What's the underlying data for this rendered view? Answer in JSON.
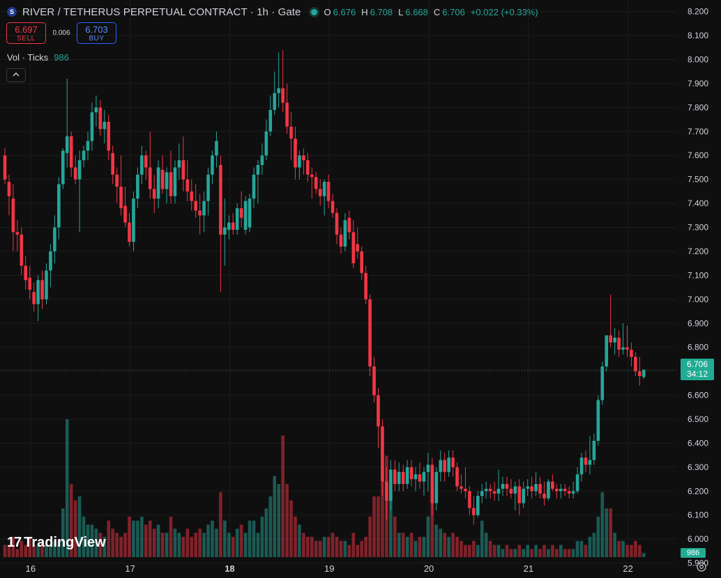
{
  "header": {
    "symbol_icon": "S",
    "title": "RIVER / TETHERUS PERPETUAL CONTRACT · 1h · Gate",
    "o_label": "O",
    "o_value": "6.676",
    "h_label": "H",
    "h_value": "6.708",
    "l_label": "L",
    "l_value": "6.668",
    "c_label": "C",
    "c_value": "6.706",
    "change": "+0.022 (+0.33%)"
  },
  "trade": {
    "sell_price": "6.697",
    "sell_label": "SELL",
    "spread": "0.006",
    "buy_price": "6.703",
    "buy_label": "BUY"
  },
  "volume_legend": {
    "label": "Vol · Ticks",
    "value": "986"
  },
  "price_tag": {
    "price": "6.706",
    "countdown": "34:12"
  },
  "volume_tag": "986",
  "logo": {
    "mark": "17",
    "name": "TradingView"
  },
  "colors": {
    "up": "#26a69a",
    "down": "#f23645",
    "bg": "#0f0f0f",
    "grid": "#1c1c1c"
  },
  "icons": {
    "collapse": "chevron-up-icon",
    "settings": "gear-icon"
  },
  "chart_data": {
    "type": "candlestick",
    "y_range": [
      5.925,
      8.225
    ],
    "y_ticks": [
      "8.200",
      "8.100",
      "8.000",
      "7.900",
      "7.800",
      "7.700",
      "7.600",
      "7.500",
      "7.400",
      "7.300",
      "7.200",
      "7.100",
      "7.000",
      "6.900",
      "6.800",
      "6.700",
      "6.600",
      "6.500",
      "6.400",
      "6.300",
      "6.200",
      "6.100",
      "6.000",
      "5.900"
    ],
    "x_tick_labels": [
      {
        "label": "16",
        "bar": 3,
        "bold": false
      },
      {
        "label": "17",
        "bar": 27,
        "bold": false
      },
      {
        "label": "18",
        "bar": 51,
        "bold": true
      },
      {
        "label": "19",
        "bar": 75,
        "bold": false
      },
      {
        "label": "20",
        "bar": 99,
        "bold": false
      },
      {
        "label": "21",
        "bar": 123,
        "bold": false
      },
      {
        "label": "22",
        "bar": 147,
        "bold": false
      }
    ],
    "last_price": 6.706,
    "candles": [
      {
        "o": 7.6,
        "h": 7.63,
        "l": 7.48,
        "c": 7.5,
        "v": 3
      },
      {
        "o": 7.49,
        "h": 7.52,
        "l": 7.35,
        "c": 7.43,
        "v": 3
      },
      {
        "o": 7.42,
        "h": 7.48,
        "l": 7.2,
        "c": 7.28,
        "v": 5
      },
      {
        "o": 7.28,
        "h": 7.33,
        "l": 7.2,
        "c": 7.27,
        "v": 2
      },
      {
        "o": 7.27,
        "h": 7.3,
        "l": 7.1,
        "c": 7.14,
        "v": 4
      },
      {
        "o": 7.14,
        "h": 7.18,
        "l": 7.04,
        "c": 7.08,
        "v": 3
      },
      {
        "o": 7.09,
        "h": 7.14,
        "l": 7.0,
        "c": 7.04,
        "v": 5
      },
      {
        "o": 7.03,
        "h": 7.07,
        "l": 6.95,
        "c": 6.98,
        "v": 3
      },
      {
        "o": 6.98,
        "h": 7.1,
        "l": 6.91,
        "c": 7.08,
        "v": 3
      },
      {
        "o": 7.08,
        "h": 7.12,
        "l": 6.96,
        "c": 7.0,
        "v": 4
      },
      {
        "o": 7.0,
        "h": 7.15,
        "l": 6.98,
        "c": 7.12,
        "v": 3
      },
      {
        "o": 7.12,
        "h": 7.23,
        "l": 7.05,
        "c": 7.2,
        "v": 3
      },
      {
        "o": 7.2,
        "h": 7.35,
        "l": 7.15,
        "c": 7.3,
        "v": 4
      },
      {
        "o": 7.3,
        "h": 7.51,
        "l": 7.25,
        "c": 7.48,
        "v": 4
      },
      {
        "o": 7.48,
        "h": 7.63,
        "l": 7.46,
        "c": 7.62,
        "v": 12
      },
      {
        "o": 7.61,
        "h": 7.92,
        "l": 7.55,
        "c": 7.68,
        "v": 34
      },
      {
        "o": 7.68,
        "h": 7.7,
        "l": 7.51,
        "c": 7.55,
        "v": 18
      },
      {
        "o": 7.55,
        "h": 7.6,
        "l": 7.48,
        "c": 7.5,
        "v": 14
      },
      {
        "o": 7.5,
        "h": 7.62,
        "l": 7.28,
        "c": 7.58,
        "v": 15
      },
      {
        "o": 7.58,
        "h": 7.64,
        "l": 7.55,
        "c": 7.62,
        "v": 10
      },
      {
        "o": 7.62,
        "h": 7.7,
        "l": 7.58,
        "c": 7.66,
        "v": 8
      },
      {
        "o": 7.66,
        "h": 7.82,
        "l": 7.62,
        "c": 7.78,
        "v": 8
      },
      {
        "o": 7.78,
        "h": 7.85,
        "l": 7.72,
        "c": 7.8,
        "v": 7
      },
      {
        "o": 7.8,
        "h": 7.83,
        "l": 7.68,
        "c": 7.71,
        "v": 6
      },
      {
        "o": 7.71,
        "h": 7.79,
        "l": 7.65,
        "c": 7.74,
        "v": 5
      },
      {
        "o": 7.74,
        "h": 7.77,
        "l": 7.58,
        "c": 7.62,
        "v": 9
      },
      {
        "o": 7.61,
        "h": 7.64,
        "l": 7.48,
        "c": 7.52,
        "v": 7
      },
      {
        "o": 7.52,
        "h": 7.55,
        "l": 7.4,
        "c": 7.47,
        "v": 6
      },
      {
        "o": 7.47,
        "h": 7.6,
        "l": 7.35,
        "c": 7.38,
        "v": 5
      },
      {
        "o": 7.39,
        "h": 7.47,
        "l": 7.3,
        "c": 7.32,
        "v": 6
      },
      {
        "o": 7.32,
        "h": 7.36,
        "l": 7.22,
        "c": 7.24,
        "v": 10
      },
      {
        "o": 7.24,
        "h": 7.45,
        "l": 7.2,
        "c": 7.42,
        "v": 9
      },
      {
        "o": 7.42,
        "h": 7.55,
        "l": 7.38,
        "c": 7.52,
        "v": 9
      },
      {
        "o": 7.52,
        "h": 7.64,
        "l": 7.48,
        "c": 7.6,
        "v": 10
      },
      {
        "o": 7.6,
        "h": 7.62,
        "l": 7.5,
        "c": 7.55,
        "v": 8
      },
      {
        "o": 7.55,
        "h": 7.7,
        "l": 7.42,
        "c": 7.46,
        "v": 9
      },
      {
        "o": 7.46,
        "h": 7.52,
        "l": 7.36,
        "c": 7.42,
        "v": 7
      },
      {
        "o": 7.42,
        "h": 7.58,
        "l": 7.38,
        "c": 7.55,
        "v": 8
      },
      {
        "o": 7.54,
        "h": 7.6,
        "l": 7.44,
        "c": 7.46,
        "v": 6
      },
      {
        "o": 7.46,
        "h": 7.55,
        "l": 7.4,
        "c": 7.53,
        "v": 6
      },
      {
        "o": 7.53,
        "h": 7.62,
        "l": 7.4,
        "c": 7.43,
        "v": 10
      },
      {
        "o": 7.43,
        "h": 7.58,
        "l": 7.4,
        "c": 7.55,
        "v": 7
      },
      {
        "o": 7.55,
        "h": 7.65,
        "l": 7.5,
        "c": 7.58,
        "v": 6
      },
      {
        "o": 7.58,
        "h": 7.68,
        "l": 7.45,
        "c": 7.5,
        "v": 5
      },
      {
        "o": 7.5,
        "h": 7.58,
        "l": 7.41,
        "c": 7.45,
        "v": 7
      },
      {
        "o": 7.45,
        "h": 7.5,
        "l": 7.37,
        "c": 7.41,
        "v": 5
      },
      {
        "o": 7.41,
        "h": 7.48,
        "l": 7.34,
        "c": 7.37,
        "v": 6
      },
      {
        "o": 7.37,
        "h": 7.44,
        "l": 7.27,
        "c": 7.35,
        "v": 7
      },
      {
        "o": 7.35,
        "h": 7.45,
        "l": 7.28,
        "c": 7.41,
        "v": 6
      },
      {
        "o": 7.41,
        "h": 7.55,
        "l": 7.35,
        "c": 7.52,
        "v": 8
      },
      {
        "o": 7.52,
        "h": 7.62,
        "l": 7.48,
        "c": 7.6,
        "v": 9
      },
      {
        "o": 7.6,
        "h": 7.7,
        "l": 7.55,
        "c": 7.66,
        "v": 7
      },
      {
        "o": 7.56,
        "h": 7.6,
        "l": 7.03,
        "c": 7.27,
        "v": 16
      },
      {
        "o": 7.27,
        "h": 7.42,
        "l": 7.14,
        "c": 7.3,
        "v": 9
      },
      {
        "o": 7.29,
        "h": 7.35,
        "l": 7.25,
        "c": 7.32,
        "v": 6
      },
      {
        "o": 7.32,
        "h": 7.36,
        "l": 7.27,
        "c": 7.29,
        "v": 5
      },
      {
        "o": 7.29,
        "h": 7.4,
        "l": 7.27,
        "c": 7.38,
        "v": 7
      },
      {
        "o": 7.38,
        "h": 7.45,
        "l": 7.3,
        "c": 7.34,
        "v": 8
      },
      {
        "o": 7.29,
        "h": 7.43,
        "l": 7.27,
        "c": 7.41,
        "v": 6
      },
      {
        "o": 7.3,
        "h": 7.44,
        "l": 7.28,
        "c": 7.42,
        "v": 9
      },
      {
        "o": 7.42,
        "h": 7.55,
        "l": 7.38,
        "c": 7.52,
        "v": 9
      },
      {
        "o": 7.52,
        "h": 7.58,
        "l": 7.4,
        "c": 7.56,
        "v": 6
      },
      {
        "o": 7.56,
        "h": 7.65,
        "l": 7.52,
        "c": 7.6,
        "v": 10
      },
      {
        "o": 7.6,
        "h": 7.75,
        "l": 7.58,
        "c": 7.7,
        "v": 12
      },
      {
        "o": 7.7,
        "h": 7.85,
        "l": 7.68,
        "c": 7.79,
        "v": 15
      },
      {
        "o": 7.79,
        "h": 7.95,
        "l": 7.77,
        "c": 7.86,
        "v": 20
      },
      {
        "o": 7.86,
        "h": 8.03,
        "l": 7.8,
        "c": 7.88,
        "v": 18
      },
      {
        "o": 7.88,
        "h": 8.04,
        "l": 7.78,
        "c": 7.82,
        "v": 30
      },
      {
        "o": 7.82,
        "h": 7.9,
        "l": 7.69,
        "c": 7.72,
        "v": 18
      },
      {
        "o": 7.72,
        "h": 7.78,
        "l": 7.58,
        "c": 7.67,
        "v": 14
      },
      {
        "o": 7.67,
        "h": 7.72,
        "l": 7.5,
        "c": 7.55,
        "v": 10
      },
      {
        "o": 7.55,
        "h": 7.62,
        "l": 7.5,
        "c": 7.6,
        "v": 8
      },
      {
        "o": 7.6,
        "h": 7.63,
        "l": 7.52,
        "c": 7.58,
        "v": 6
      },
      {
        "o": 7.58,
        "h": 7.61,
        "l": 7.49,
        "c": 7.52,
        "v": 5
      },
      {
        "o": 7.52,
        "h": 7.55,
        "l": 7.42,
        "c": 7.51,
        "v": 5
      },
      {
        "o": 7.51,
        "h": 7.53,
        "l": 7.44,
        "c": 7.46,
        "v": 4
      },
      {
        "o": 7.46,
        "h": 7.5,
        "l": 7.39,
        "c": 7.43,
        "v": 4
      },
      {
        "o": 7.43,
        "h": 7.5,
        "l": 7.35,
        "c": 7.49,
        "v": 5
      },
      {
        "o": 7.49,
        "h": 7.52,
        "l": 7.38,
        "c": 7.41,
        "v": 5
      },
      {
        "o": 7.41,
        "h": 7.44,
        "l": 7.34,
        "c": 7.36,
        "v": 6
      },
      {
        "o": 7.36,
        "h": 7.38,
        "l": 7.23,
        "c": 7.27,
        "v": 5
      },
      {
        "o": 7.27,
        "h": 7.3,
        "l": 7.19,
        "c": 7.22,
        "v": 4
      },
      {
        "o": 7.22,
        "h": 7.36,
        "l": 7.2,
        "c": 7.33,
        "v": 4
      },
      {
        "o": 7.34,
        "h": 7.37,
        "l": 7.25,
        "c": 7.28,
        "v": 3
      },
      {
        "o": 7.28,
        "h": 7.33,
        "l": 7.13,
        "c": 7.15,
        "v": 6
      },
      {
        "o": 7.23,
        "h": 7.3,
        "l": 7.17,
        "c": 7.2,
        "v": 3
      },
      {
        "o": 7.2,
        "h": 7.22,
        "l": 7.08,
        "c": 7.11,
        "v": 4
      },
      {
        "o": 7.11,
        "h": 7.14,
        "l": 6.98,
        "c": 7.0,
        "v": 5
      },
      {
        "o": 7.0,
        "h": 7.02,
        "l": 6.68,
        "c": 6.72,
        "v": 10
      },
      {
        "o": 6.72,
        "h": 6.76,
        "l": 6.57,
        "c": 6.6,
        "v": 15
      },
      {
        "o": 6.6,
        "h": 6.63,
        "l": 6.38,
        "c": 6.47,
        "v": 15
      },
      {
        "o": 6.47,
        "h": 6.5,
        "l": 6.18,
        "c": 6.24,
        "v": 20
      },
      {
        "o": 6.24,
        "h": 6.3,
        "l": 6.08,
        "c": 6.16,
        "v": 25
      },
      {
        "o": 6.16,
        "h": 6.33,
        "l": 6.12,
        "c": 6.29,
        "v": 15
      },
      {
        "o": 6.29,
        "h": 6.33,
        "l": 6.2,
        "c": 6.23,
        "v": 10
      },
      {
        "o": 6.23,
        "h": 6.32,
        "l": 6.2,
        "c": 6.28,
        "v": 6
      },
      {
        "o": 6.28,
        "h": 6.31,
        "l": 6.2,
        "c": 6.23,
        "v": 6
      },
      {
        "o": 6.23,
        "h": 6.33,
        "l": 6.21,
        "c": 6.3,
        "v": 5
      },
      {
        "o": 6.3,
        "h": 6.33,
        "l": 6.22,
        "c": 6.25,
        "v": 6
      },
      {
        "o": 6.25,
        "h": 6.3,
        "l": 6.2,
        "c": 6.27,
        "v": 4
      },
      {
        "o": 6.27,
        "h": 6.32,
        "l": 6.21,
        "c": 6.24,
        "v": 5
      },
      {
        "o": 6.24,
        "h": 6.3,
        "l": 6.18,
        "c": 6.28,
        "v": 5
      },
      {
        "o": 6.28,
        "h": 6.36,
        "l": 6.2,
        "c": 6.31,
        "v": 10
      },
      {
        "o": 6.31,
        "h": 6.34,
        "l": 6.1,
        "c": 6.15,
        "v": 14
      },
      {
        "o": 6.15,
        "h": 6.3,
        "l": 6.12,
        "c": 6.28,
        "v": 8
      },
      {
        "o": 6.28,
        "h": 6.37,
        "l": 6.24,
        "c": 6.33,
        "v": 7
      },
      {
        "o": 6.33,
        "h": 6.36,
        "l": 6.24,
        "c": 6.28,
        "v": 6
      },
      {
        "o": 6.28,
        "h": 6.37,
        "l": 6.26,
        "c": 6.34,
        "v": 5
      },
      {
        "o": 6.34,
        "h": 6.37,
        "l": 6.26,
        "c": 6.3,
        "v": 6
      },
      {
        "o": 6.3,
        "h": 6.32,
        "l": 6.2,
        "c": 6.22,
        "v": 5
      },
      {
        "o": 6.22,
        "h": 6.27,
        "l": 6.19,
        "c": 6.21,
        "v": 4
      },
      {
        "o": 6.21,
        "h": 6.3,
        "l": 6.17,
        "c": 6.2,
        "v": 3
      },
      {
        "o": 6.2,
        "h": 6.22,
        "l": 6.1,
        "c": 6.13,
        "v": 3
      },
      {
        "o": 6.13,
        "h": 6.18,
        "l": 6.06,
        "c": 6.1,
        "v": 4
      },
      {
        "o": 6.1,
        "h": 6.2,
        "l": 6.09,
        "c": 6.18,
        "v": 3
      },
      {
        "o": 6.18,
        "h": 6.23,
        "l": 6.15,
        "c": 6.2,
        "v": 9
      },
      {
        "o": 6.2,
        "h": 6.24,
        "l": 6.17,
        "c": 6.21,
        "v": 6
      },
      {
        "o": 6.21,
        "h": 6.23,
        "l": 6.17,
        "c": 6.2,
        "v": 4
      },
      {
        "o": 6.2,
        "h": 6.24,
        "l": 6.16,
        "c": 6.19,
        "v": 3
      },
      {
        "o": 6.19,
        "h": 6.29,
        "l": 6.16,
        "c": 6.21,
        "v": 3
      },
      {
        "o": 6.21,
        "h": 6.26,
        "l": 6.18,
        "c": 6.23,
        "v": 2
      },
      {
        "o": 6.23,
        "h": 6.26,
        "l": 6.18,
        "c": 6.21,
        "v": 3
      },
      {
        "o": 6.21,
        "h": 6.25,
        "l": 6.17,
        "c": 6.19,
        "v": 2
      },
      {
        "o": 6.19,
        "h": 6.24,
        "l": 6.12,
        "c": 6.22,
        "v": 2
      },
      {
        "o": 6.22,
        "h": 6.25,
        "l": 6.1,
        "c": 6.15,
        "v": 3
      },
      {
        "o": 6.15,
        "h": 6.24,
        "l": 6.13,
        "c": 6.21,
        "v": 2
      },
      {
        "o": 6.21,
        "h": 6.25,
        "l": 6.18,
        "c": 6.22,
        "v": 3
      },
      {
        "o": 6.22,
        "h": 6.26,
        "l": 6.17,
        "c": 6.2,
        "v": 2
      },
      {
        "o": 6.2,
        "h": 6.28,
        "l": 6.18,
        "c": 6.23,
        "v": 3
      },
      {
        "o": 6.23,
        "h": 6.26,
        "l": 6.17,
        "c": 6.19,
        "v": 2
      },
      {
        "o": 6.19,
        "h": 6.24,
        "l": 6.14,
        "c": 6.17,
        "v": 3
      },
      {
        "o": 6.17,
        "h": 6.25,
        "l": 6.16,
        "c": 6.24,
        "v": 2
      },
      {
        "o": 6.24,
        "h": 6.27,
        "l": 6.2,
        "c": 6.21,
        "v": 3
      },
      {
        "o": 6.21,
        "h": 6.23,
        "l": 6.17,
        "c": 6.2,
        "v": 2
      },
      {
        "o": 6.2,
        "h": 6.23,
        "l": 6.17,
        "c": 6.21,
        "v": 3
      },
      {
        "o": 6.21,
        "h": 6.23,
        "l": 6.18,
        "c": 6.2,
        "v": 2
      },
      {
        "o": 6.2,
        "h": 6.22,
        "l": 6.17,
        "c": 6.19,
        "v": 2
      },
      {
        "o": 6.19,
        "h": 6.24,
        "l": 6.17,
        "c": 6.2,
        "v": 2
      },
      {
        "o": 6.2,
        "h": 6.3,
        "l": 6.19,
        "c": 6.27,
        "v": 4
      },
      {
        "o": 6.27,
        "h": 6.36,
        "l": 6.24,
        "c": 6.34,
        "v": 4
      },
      {
        "o": 6.34,
        "h": 6.37,
        "l": 6.28,
        "c": 6.31,
        "v": 3
      },
      {
        "o": 6.31,
        "h": 6.43,
        "l": 6.27,
        "c": 6.33,
        "v": 5
      },
      {
        "o": 6.33,
        "h": 6.44,
        "l": 6.31,
        "c": 6.41,
        "v": 6
      },
      {
        "o": 6.41,
        "h": 6.6,
        "l": 6.39,
        "c": 6.58,
        "v": 10
      },
      {
        "o": 6.58,
        "h": 6.74,
        "l": 6.56,
        "c": 6.72,
        "v": 16
      },
      {
        "o": 6.72,
        "h": 6.85,
        "l": 6.7,
        "c": 6.85,
        "v": 12
      },
      {
        "o": 6.85,
        "h": 7.02,
        "l": 6.8,
        "c": 6.82,
        "v": 12
      },
      {
        "o": 6.82,
        "h": 6.88,
        "l": 6.77,
        "c": 6.84,
        "v": 6
      },
      {
        "o": 6.84,
        "h": 6.87,
        "l": 6.76,
        "c": 6.79,
        "v": 4
      },
      {
        "o": 6.79,
        "h": 6.9,
        "l": 6.77,
        "c": 6.8,
        "v": 4
      },
      {
        "o": 6.8,
        "h": 6.89,
        "l": 6.76,
        "c": 6.79,
        "v": 3
      },
      {
        "o": 6.79,
        "h": 6.82,
        "l": 6.72,
        "c": 6.76,
        "v": 3
      },
      {
        "o": 6.76,
        "h": 6.78,
        "l": 6.68,
        "c": 6.7,
        "v": 4
      },
      {
        "o": 6.7,
        "h": 6.76,
        "l": 6.64,
        "c": 6.68,
        "v": 3
      },
      {
        "o": 6.676,
        "h": 6.708,
        "l": 6.668,
        "c": 6.706,
        "v": 1
      }
    ]
  }
}
